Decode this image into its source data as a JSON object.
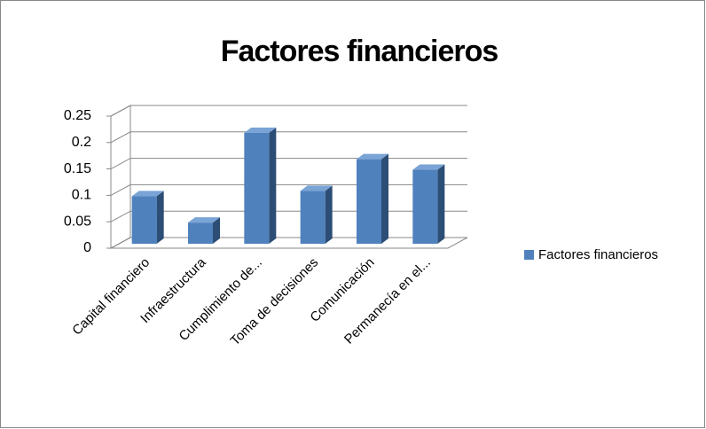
{
  "chart_data": {
    "type": "bar3d",
    "title": "Factores financieros",
    "categories": [
      "Capital financiero",
      "Infraestructura",
      "Cumplimiento de...",
      "Toma de decisiones",
      "Comunicación",
      "Permanecía en el..."
    ],
    "series": [
      {
        "name": "Factores financieros",
        "color": "#4f81bd",
        "values": [
          0.09,
          0.04,
          0.21,
          0.1,
          0.16,
          0.14
        ]
      }
    ],
    "ylim": [
      0,
      0.25
    ],
    "yticks": [
      0,
      0.05,
      0.1,
      0.15,
      0.2,
      0.25
    ],
    "grid": true,
    "legend": "right"
  }
}
